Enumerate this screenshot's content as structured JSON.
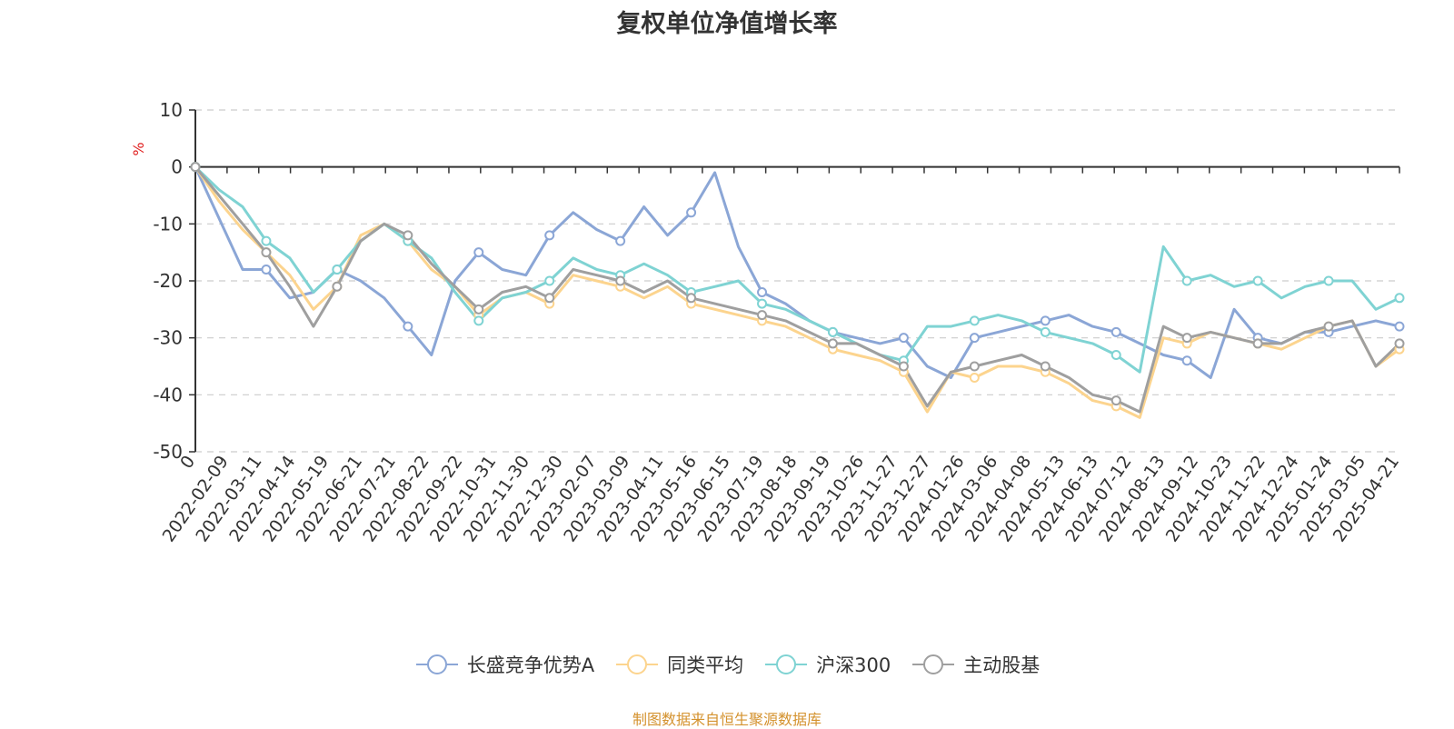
{
  "chart_data": {
    "type": "line",
    "title": "复权单位净值增长率",
    "ylabel": "%",
    "xlabel": "",
    "ylim": [
      -50,
      10
    ],
    "yticks": [
      10,
      0,
      -10,
      -20,
      -30,
      -40,
      -50
    ],
    "grid": true,
    "legend_position": "bottom-center",
    "x_tick_labels": [
      "0",
      "2022-02-09",
      "2022-03-11",
      "2022-04-14",
      "2022-05-19",
      "2022-06-21",
      "2022-07-21",
      "2022-08-22",
      "2022-09-22",
      "2022-10-31",
      "2022-11-30",
      "2022-12-30",
      "2023-02-07",
      "2023-03-09",
      "2023-04-11",
      "2023-05-16",
      "2023-06-15",
      "2023-07-19",
      "2023-08-18",
      "2023-09-19",
      "2023-10-26",
      "2023-11-27",
      "2023-12-27",
      "2024-01-26",
      "2024-03-06",
      "2024-04-08",
      "2024-05-13",
      "2024-06-13",
      "2024-07-12",
      "2024-08-13",
      "2024-09-12",
      "2024-10-23",
      "2024-11-22",
      "2024-12-24",
      "2025-01-24",
      "2025-03-05",
      "2025-04-21"
    ],
    "series": [
      {
        "name": "长盛竞争优势A",
        "color": "#8ba6d6",
        "values": [
          0,
          -9,
          -18,
          -18,
          -23,
          -22,
          -18,
          -20,
          -23,
          -28,
          -33,
          -20,
          -15,
          -18,
          -19,
          -12,
          -8,
          -11,
          -13,
          -7,
          -12,
          -8,
          -1,
          -14,
          -22,
          -24,
          -27,
          -29,
          -30,
          -31,
          -30,
          -35,
          -37,
          -30,
          -29,
          -28,
          -27,
          -26,
          -28,
          -29,
          -31,
          -33,
          -34,
          -37,
          -25,
          -30,
          -31,
          -29,
          -29,
          -28,
          -27,
          -28
        ]
      },
      {
        "name": "同类平均",
        "color": "#fcd48e",
        "values": [
          0,
          -6,
          -11,
          -15,
          -19,
          -25,
          -21,
          -12,
          -10,
          -13,
          -18,
          -21,
          -26,
          -23,
          -22,
          -24,
          -19,
          -20,
          -21,
          -23,
          -21,
          -24,
          -25,
          -26,
          -27,
          -28,
          -30,
          -32,
          -33,
          -34,
          -36,
          -43,
          -36,
          -37,
          -35,
          -35,
          -36,
          -38,
          -41,
          -42,
          -44,
          -30,
          -31,
          -29,
          -30,
          -31,
          -32,
          -30,
          -28,
          -27,
          -35,
          -32
        ]
      },
      {
        "name": "沪深300",
        "color": "#7fd3d3",
        "values": [
          0,
          -4,
          -7,
          -13,
          -16,
          -22,
          -18,
          -13,
          -10,
          -13,
          -16,
          -22,
          -27,
          -23,
          -22,
          -20,
          -16,
          -18,
          -19,
          -17,
          -19,
          -22,
          -21,
          -20,
          -24,
          -25,
          -27,
          -29,
          -31,
          -33,
          -34,
          -28,
          -28,
          -27,
          -26,
          -27,
          -29,
          -30,
          -31,
          -33,
          -36,
          -14,
          -20,
          -19,
          -21,
          -20,
          -23,
          -21,
          -20,
          -20,
          -25,
          -23
        ]
      },
      {
        "name": "主动股基",
        "color": "#9f9f9f",
        "values": [
          0,
          -5,
          -10,
          -15,
          -21,
          -28,
          -21,
          -13,
          -10,
          -12,
          -17,
          -21,
          -25,
          -22,
          -21,
          -23,
          -18,
          -19,
          -20,
          -22,
          -20,
          -23,
          -24,
          -25,
          -26,
          -27,
          -29,
          -31,
          -31,
          -33,
          -35,
          -42,
          -36,
          -35,
          -34,
          -33,
          -35,
          -37,
          -40,
          -41,
          -43,
          -28,
          -30,
          -29,
          -30,
          -31,
          -31,
          -29,
          -28,
          -27,
          -35,
          -31
        ]
      }
    ]
  },
  "source_note": "制图数据来自恒生聚源数据库"
}
